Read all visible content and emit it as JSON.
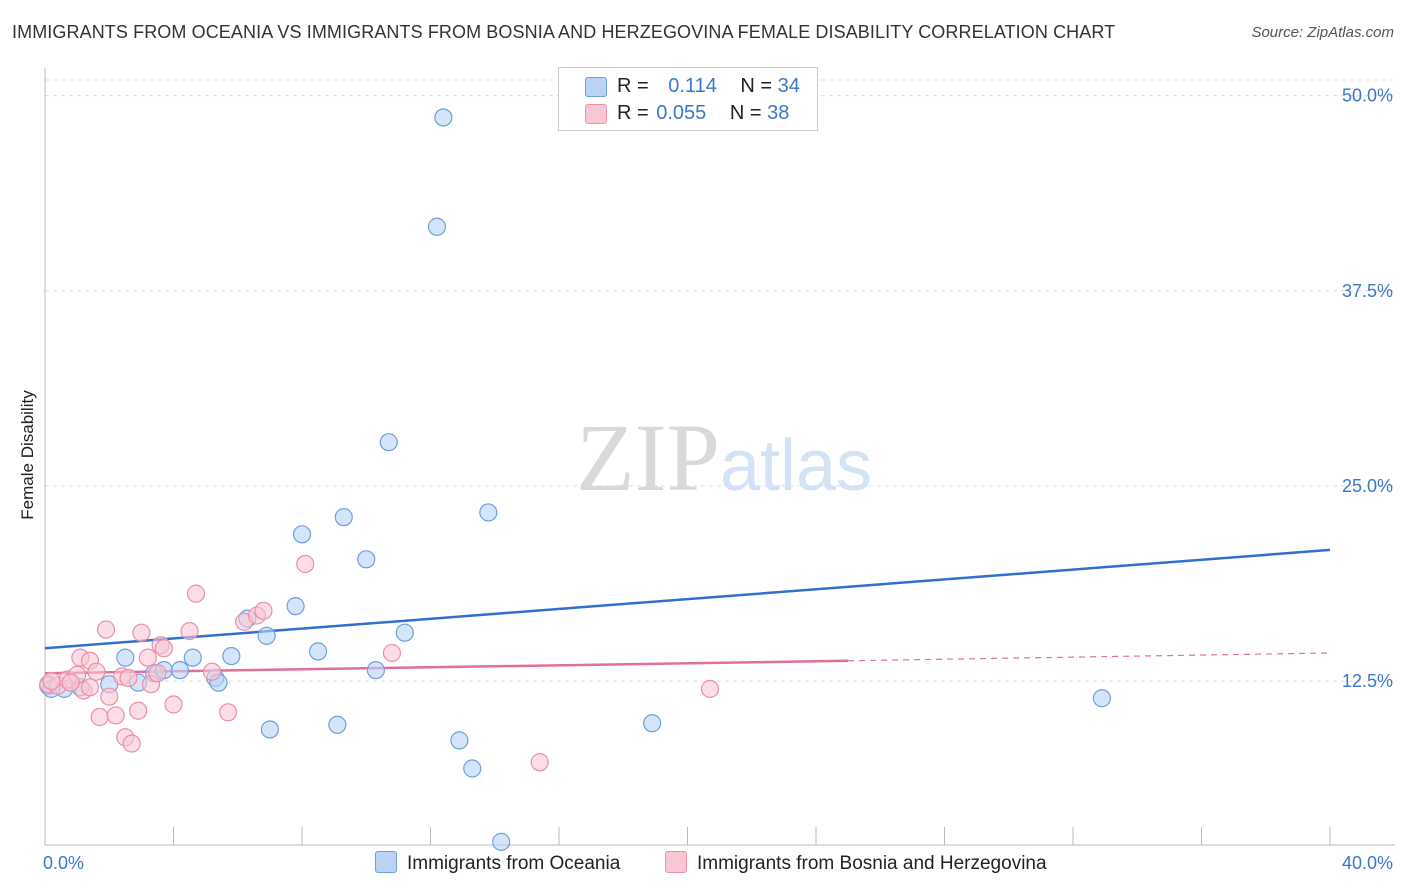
{
  "header": {
    "title": "IMMIGRANTS FROM OCEANIA VS IMMIGRANTS FROM BOSNIA AND HERZEGOVINA FEMALE DISABILITY CORRELATION CHART",
    "source": "Source: ZipAtlas.com"
  },
  "watermark": {
    "zip": "ZIP",
    "atlas": "atlas"
  },
  "legend": {
    "rows": [
      {
        "r_label": "R =",
        "r_value": "0.114",
        "n_label": "N =",
        "n_value": "34"
      },
      {
        "r_label": "R =",
        "r_value": "0.055",
        "n_label": "N =",
        "n_value": "38"
      }
    ]
  },
  "colors": {
    "blue_fill": "#b9d3f5",
    "blue_stroke": "#6f9fdc",
    "blue_line": "#2f6fcf",
    "pink_fill": "#f9c6d4",
    "pink_stroke": "#ea8fab",
    "pink_line": "#e0709a",
    "tick": "#3a78c9",
    "grid": "#dddddd"
  },
  "chart_data": {
    "type": "scatter",
    "title": "IMMIGRANTS FROM OCEANIA VS IMMIGRANTS FROM BOSNIA AND HERZEGOVINA FEMALE DISABILITY CORRELATION CHART",
    "xlabel": "",
    "ylabel": "Female Disability",
    "xlim": [
      0,
      40
    ],
    "ylim": [
      2,
      51
    ],
    "x_tick_labels": [
      "0.0%",
      "40.0%"
    ],
    "y_ticks": [
      12.5,
      25.0,
      37.5,
      50.0
    ],
    "y_tick_labels": [
      "12.5%",
      "25.0%",
      "37.5%",
      "50.0%"
    ],
    "grid": true,
    "series": [
      {
        "name": "Immigrants from Oceania",
        "color": "#b9d3f5",
        "points": [
          [
            0.1,
            12.2
          ],
          [
            0.6,
            12.0
          ],
          [
            1.1,
            12.1
          ],
          [
            2.0,
            12.3
          ],
          [
            2.5,
            14.0
          ],
          [
            2.9,
            12.4
          ],
          [
            3.4,
            13.0
          ],
          [
            3.7,
            13.2
          ],
          [
            4.2,
            13.2
          ],
          [
            4.6,
            14.0
          ],
          [
            5.3,
            12.7
          ],
          [
            5.4,
            12.4
          ],
          [
            5.8,
            14.1
          ],
          [
            6.3,
            16.5
          ],
          [
            6.9,
            15.4
          ],
          [
            7.0,
            9.4
          ],
          [
            7.8,
            17.3
          ],
          [
            8.0,
            21.9
          ],
          [
            8.5,
            14.4
          ],
          [
            9.1,
            9.7
          ],
          [
            9.3,
            23.0
          ],
          [
            10.0,
            20.3
          ],
          [
            10.3,
            13.2
          ],
          [
            10.7,
            27.8
          ],
          [
            11.2,
            15.6
          ],
          [
            12.2,
            41.6
          ],
          [
            12.4,
            48.6
          ],
          [
            12.9,
            8.7
          ],
          [
            13.3,
            6.9
          ],
          [
            13.8,
            23.3
          ],
          [
            14.2,
            2.2
          ],
          [
            18.9,
            9.8
          ],
          [
            32.9,
            11.4
          ],
          [
            0.2,
            12.0
          ]
        ]
      },
      {
        "name": "Immigrants from Bosnia and Herzegovina",
        "color": "#f9c6d4",
        "points": [
          [
            0.1,
            12.3
          ],
          [
            0.4,
            12.2
          ],
          [
            0.7,
            12.6
          ],
          [
            1.0,
            12.9
          ],
          [
            1.1,
            14.0
          ],
          [
            1.2,
            11.9
          ],
          [
            1.4,
            12.1
          ],
          [
            1.4,
            13.8
          ],
          [
            1.6,
            13.1
          ],
          [
            1.7,
            10.2
          ],
          [
            1.9,
            15.8
          ],
          [
            2.0,
            11.5
          ],
          [
            2.2,
            10.3
          ],
          [
            2.4,
            12.8
          ],
          [
            2.5,
            8.9
          ],
          [
            2.7,
            8.5
          ],
          [
            2.9,
            10.6
          ],
          [
            3.0,
            15.6
          ],
          [
            3.2,
            14.0
          ],
          [
            3.3,
            12.3
          ],
          [
            3.5,
            13.0
          ],
          [
            3.6,
            14.8
          ],
          [
            3.7,
            14.6
          ],
          [
            4.0,
            11.0
          ],
          [
            4.5,
            15.7
          ],
          [
            4.7,
            18.1
          ],
          [
            5.2,
            13.1
          ],
          [
            5.7,
            10.5
          ],
          [
            6.2,
            16.3
          ],
          [
            6.6,
            16.7
          ],
          [
            6.8,
            17.0
          ],
          [
            8.1,
            20.0
          ],
          [
            10.8,
            14.3
          ],
          [
            15.4,
            7.3
          ],
          [
            20.7,
            12.0
          ],
          [
            0.2,
            12.5
          ],
          [
            0.8,
            12.4
          ],
          [
            2.6,
            12.7
          ]
        ]
      }
    ],
    "trend_lines": [
      {
        "series": "Immigrants from Oceania",
        "x": [
          0,
          40
        ],
        "y": [
          14.6,
          20.9
        ],
        "style": "solid"
      },
      {
        "series": "Immigrants from Bosnia and Herzegovina",
        "x": [
          0,
          25
        ],
        "y": [
          13.0,
          13.8
        ],
        "style": "solid"
      },
      {
        "series": "Immigrants from Bosnia and Herzegovina",
        "x": [
          25,
          40
        ],
        "y": [
          13.8,
          14.3
        ],
        "style": "dashed"
      }
    ]
  }
}
